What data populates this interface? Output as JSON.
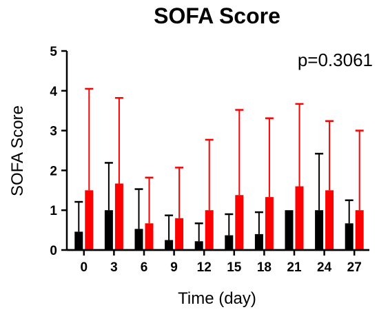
{
  "chart_data": {
    "type": "bar",
    "title": "SOFA Score",
    "xlabel": "Time (day)",
    "ylabel": "SOFA Score",
    "annotation": "p=0.3061",
    "categories": [
      "0",
      "3",
      "6",
      "9",
      "12",
      "15",
      "18",
      "21",
      "24",
      "27"
    ],
    "ylim": [
      0,
      5
    ],
    "yticks": [
      "0",
      "1",
      "2",
      "3",
      "4",
      "5"
    ],
    "grid": false,
    "series": [
      {
        "color": "#000000",
        "values": [
          0.46,
          1.0,
          0.53,
          0.25,
          0.22,
          0.37,
          0.4,
          1.0,
          1.0,
          0.67
        ],
        "error_upper": [
          1.21,
          2.19,
          1.53,
          0.87,
          0.67,
          0.9,
          0.95,
          1.0,
          2.42,
          1.25
        ]
      },
      {
        "color": "#ff0000",
        "values": [
          1.5,
          1.67,
          0.67,
          0.8,
          1.0,
          1.38,
          1.33,
          1.6,
          1.5,
          1.0
        ],
        "error_upper": [
          4.05,
          3.82,
          1.82,
          2.07,
          2.77,
          3.52,
          3.31,
          3.67,
          3.24,
          3.0
        ]
      }
    ]
  }
}
